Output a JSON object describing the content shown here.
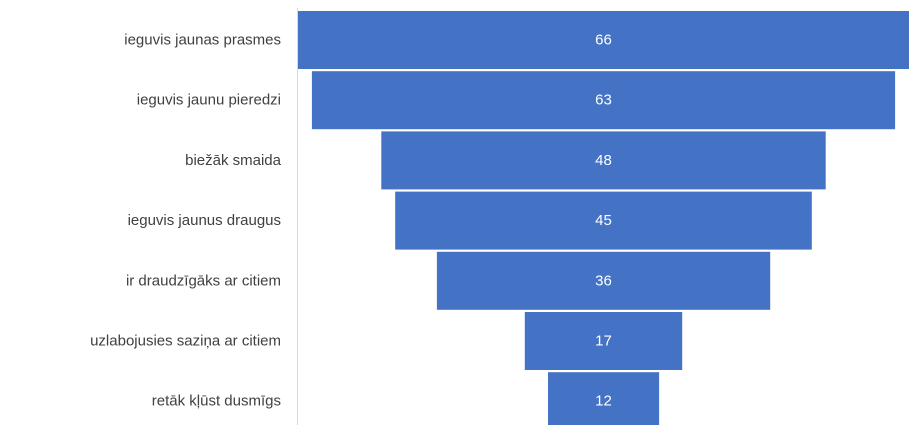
{
  "chart_data": {
    "type": "bar",
    "subtype": "funnel",
    "categories": [
      "ieguvis jaunas prasmes",
      "ieguvis jaunu pieredzi",
      "biežāk smaida",
      "ieguvis jaunus draugus",
      "ir draudzīgāks ar citiem",
      "uzlabojusies saziņa ar citiem",
      "retāk kļūst dusmīgs"
    ],
    "values": [
      66,
      63,
      48,
      45,
      36,
      17,
      12
    ],
    "title": "",
    "xlabel": "",
    "ylabel": "",
    "data_labels": true,
    "legend": "none",
    "grid": false
  },
  "colors": {
    "bar": "#4472c4",
    "axis": "#d9d9d9",
    "label": "#404040",
    "value_label": "#ffffff"
  }
}
